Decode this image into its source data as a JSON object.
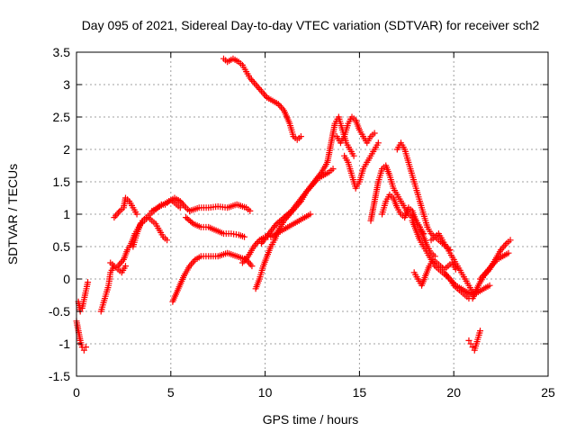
{
  "chart_data": {
    "type": "scatter",
    "title": "Day 095 of 2021, Sidereal Day-to-day VTEC variation (SDTVAR) for receiver sch2",
    "xlabel": "GPS time / hours",
    "ylabel": "SDTVAR / TECUs",
    "xlim": [
      0,
      25
    ],
    "ylim": [
      -1.5,
      3.5
    ],
    "xticks": [
      "0",
      "5",
      "10",
      "15",
      "20",
      "25"
    ],
    "yticks": [
      "-1.5",
      "-1",
      "-0.5",
      "0",
      "0.5",
      "1",
      "1.5",
      "2",
      "2.5",
      "3",
      "3.5"
    ],
    "grid": true,
    "marker": "+",
    "color": "#ff0000",
    "series": [
      {
        "x": [
          0.0,
          0.1,
          0.2,
          0.3,
          0.4,
          0.5
        ],
        "y": [
          -0.65,
          -0.8,
          -0.95,
          -1.05,
          -1.1,
          -1.05
        ]
      },
      {
        "x": [
          0.1,
          0.2,
          0.3,
          0.45,
          0.6
        ],
        "y": [
          -0.35,
          -0.5,
          -0.45,
          -0.25,
          -0.05
        ]
      },
      {
        "x": [
          1.3,
          1.5,
          1.7,
          1.8,
          2.0
        ],
        "y": [
          -0.5,
          -0.3,
          -0.1,
          0.1,
          0.2
        ]
      },
      {
        "x": [
          1.8,
          2.0,
          2.2,
          2.4,
          2.6
        ],
        "y": [
          0.25,
          0.2,
          0.15,
          0.1,
          0.2
        ]
      },
      {
        "x": [
          2.0,
          2.3,
          2.5,
          2.6,
          2.8,
          3.0,
          3.2
        ],
        "y": [
          0.95,
          1.05,
          1.1,
          1.25,
          1.2,
          1.1,
          1.0
        ]
      },
      {
        "x": [
          2.2,
          2.5,
          2.7,
          2.9,
          3.1,
          3.3,
          3.5,
          3.7,
          3.9,
          4.1,
          4.3,
          4.5,
          4.7,
          4.9,
          5.1,
          5.3,
          5.5
        ],
        "y": [
          0.2,
          0.3,
          0.45,
          0.55,
          0.7,
          0.8,
          0.9,
          0.95,
          1.0,
          1.05,
          1.1,
          1.15,
          1.15,
          1.2,
          1.2,
          1.15,
          1.1
        ]
      },
      {
        "x": [
          3.0,
          3.2,
          3.4,
          3.6,
          3.8,
          4.0,
          4.2,
          4.4,
          4.6,
          4.8
        ],
        "y": [
          0.5,
          0.7,
          0.85,
          0.9,
          0.95,
          0.9,
          0.85,
          0.75,
          0.65,
          0.6
        ]
      },
      {
        "x": [
          4.0,
          4.3,
          4.6,
          4.9,
          5.2,
          5.5,
          5.8,
          6.0
        ],
        "y": [
          1.05,
          1.1,
          1.15,
          1.2,
          1.25,
          1.2,
          1.1,
          1.05
        ]
      },
      {
        "x": [
          6.0,
          6.5,
          7.0,
          7.5,
          8.0,
          8.5,
          9.0,
          9.2
        ],
        "y": [
          1.05,
          1.1,
          1.1,
          1.12,
          1.1,
          1.15,
          1.1,
          1.05
        ]
      },
      {
        "x": [
          5.8,
          6.2,
          6.6,
          7.0,
          7.4,
          7.8,
          8.2,
          8.6,
          8.9
        ],
        "y": [
          0.95,
          0.85,
          0.8,
          0.8,
          0.75,
          0.7,
          0.7,
          0.68,
          0.65
        ]
      },
      {
        "x": [
          5.1,
          5.4,
          5.7,
          6.0,
          6.3,
          6.6,
          7.0,
          7.5,
          8.0,
          8.5,
          9.0,
          9.3
        ],
        "y": [
          -0.35,
          -0.15,
          0.05,
          0.2,
          0.3,
          0.35,
          0.35,
          0.35,
          0.4,
          0.35,
          0.3,
          0.2
        ]
      },
      {
        "x": [
          7.8,
          8.0,
          8.3,
          8.6,
          8.8,
          9.0,
          9.2,
          9.5,
          9.8,
          10.1,
          10.4,
          10.7,
          11.0,
          11.3,
          11.5,
          11.7,
          11.9
        ],
        "y": [
          3.4,
          3.35,
          3.4,
          3.35,
          3.3,
          3.2,
          3.1,
          3.0,
          2.9,
          2.8,
          2.75,
          2.7,
          2.6,
          2.4,
          2.2,
          2.15,
          2.2
        ]
      },
      {
        "x": [
          8.8,
          9.1,
          9.4,
          9.7,
          10.0,
          10.3,
          10.6,
          10.9,
          11.2,
          11.5,
          11.8,
          12.1,
          12.4
        ],
        "y": [
          0.25,
          0.35,
          0.5,
          0.6,
          0.65,
          0.65,
          0.7,
          0.75,
          0.8,
          0.85,
          0.9,
          0.95,
          1.0
        ]
      },
      {
        "x": [
          9.5,
          9.7,
          9.9,
          10.1,
          10.3,
          10.5,
          10.7,
          11.0,
          11.3,
          11.6,
          11.9,
          12.2,
          12.5,
          12.8,
          13.1,
          13.4,
          13.6
        ],
        "y": [
          -0.15,
          0.0,
          0.2,
          0.35,
          0.5,
          0.6,
          0.75,
          0.9,
          1.0,
          1.1,
          1.2,
          1.35,
          1.45,
          1.55,
          1.6,
          1.65,
          1.7
        ]
      },
      {
        "x": [
          9.8,
          10.2,
          10.6,
          11.0,
          11.4,
          11.8,
          12.2,
          12.6,
          13.0,
          13.3,
          13.5,
          13.7,
          13.9,
          14.1,
          14.3,
          14.5,
          14.7
        ],
        "y": [
          0.55,
          0.7,
          0.85,
          0.95,
          1.05,
          1.2,
          1.35,
          1.5,
          1.65,
          1.8,
          2.1,
          2.4,
          2.5,
          2.3,
          2.1,
          2.0,
          1.9
        ]
      },
      {
        "x": [
          13.8,
          14.0,
          14.2,
          14.4,
          14.6,
          14.8,
          15.0,
          15.2,
          15.4,
          15.6,
          15.8
        ],
        "y": [
          2.2,
          2.1,
          2.2,
          2.4,
          2.5,
          2.45,
          2.3,
          2.2,
          2.1,
          2.2,
          2.25
        ]
      },
      {
        "x": [
          14.2,
          14.4,
          14.6,
          14.8,
          15.0,
          15.2,
          15.4,
          15.6,
          15.8,
          16.0
        ],
        "y": [
          1.9,
          1.8,
          1.6,
          1.4,
          1.5,
          1.7,
          1.8,
          1.9,
          2.0,
          2.1
        ]
      },
      {
        "x": [
          15.6,
          15.8,
          16.0,
          16.2,
          16.4,
          16.6,
          16.8,
          17.0,
          17.2,
          17.4,
          17.6,
          17.8,
          18.0,
          18.2,
          18.4
        ],
        "y": [
          0.9,
          1.2,
          1.5,
          1.7,
          1.75,
          1.6,
          1.4,
          1.3,
          1.2,
          1.1,
          1.0,
          0.95,
          0.9,
          0.8,
          0.7
        ]
      },
      {
        "x": [
          16.2,
          16.4,
          16.6,
          16.8,
          17.0,
          17.2,
          17.4,
          17.6,
          17.8,
          18.0,
          18.2,
          18.4,
          18.6,
          18.8,
          19.0
        ],
        "y": [
          1.0,
          1.2,
          1.3,
          1.25,
          1.1,
          1.0,
          0.95,
          1.1,
          1.05,
          0.9,
          0.8,
          0.65,
          0.5,
          0.4,
          0.35
        ]
      },
      {
        "x": [
          17.0,
          17.2,
          17.4,
          17.6,
          17.8,
          18.0,
          18.2,
          18.4,
          18.6,
          18.8,
          19.0,
          19.2,
          19.4,
          19.6,
          19.8
        ],
        "y": [
          2.0,
          2.1,
          2.0,
          1.8,
          1.6,
          1.4,
          1.2,
          1.0,
          0.8,
          0.7,
          0.65,
          0.6,
          0.55,
          0.5,
          0.45
        ]
      },
      {
        "x": [
          17.8,
          18.0,
          18.2,
          18.4,
          18.6,
          18.8,
          19.0,
          19.2,
          19.4,
          19.6,
          19.8,
          20.0,
          20.2,
          20.4,
          20.6,
          20.8
        ],
        "y": [
          0.9,
          0.75,
          0.6,
          0.5,
          0.4,
          0.3,
          0.2,
          0.15,
          0.1,
          0.05,
          0.0,
          -0.1,
          -0.15,
          -0.2,
          -0.25,
          -0.3
        ]
      },
      {
        "x": [
          17.9,
          18.1,
          18.3,
          18.5,
          18.7,
          18.9,
          19.1,
          19.3,
          19.5,
          19.7,
          19.9,
          20.1
        ],
        "y": [
          0.1,
          0.0,
          -0.1,
          0.05,
          0.2,
          0.3,
          0.25,
          0.2,
          0.15,
          0.2,
          0.25,
          0.15
        ]
      },
      {
        "x": [
          18.8,
          19.0,
          19.2,
          19.4,
          19.6,
          19.8,
          20.0,
          20.2,
          20.4,
          20.6,
          20.8,
          21.0
        ],
        "y": [
          0.6,
          0.65,
          0.7,
          0.6,
          0.5,
          0.4,
          0.3,
          0.2,
          0.1,
          0.0,
          -0.1,
          -0.2
        ]
      },
      {
        "x": [
          19.5,
          19.8,
          20.1,
          20.4,
          20.7,
          21.0,
          21.3,
          21.6,
          21.9
        ],
        "y": [
          0.1,
          0.0,
          -0.1,
          -0.15,
          -0.2,
          -0.25,
          -0.2,
          -0.15,
          -0.1
        ]
      },
      {
        "x": [
          20.8,
          20.9,
          21.0,
          21.1,
          21.2,
          21.3,
          21.4
        ],
        "y": [
          -0.95,
          -1.0,
          -1.05,
          -1.1,
          -1.0,
          -0.9,
          -0.8
        ]
      },
      {
        "x": [
          21.0,
          21.3,
          21.6,
          21.9,
          22.2,
          22.5,
          22.8,
          23.0
        ],
        "y": [
          -0.3,
          -0.1,
          0.05,
          0.15,
          0.3,
          0.45,
          0.55,
          0.6
        ]
      },
      {
        "x": [
          21.4,
          21.7,
          22.0,
          22.3,
          22.6,
          22.9
        ],
        "y": [
          0.0,
          0.1,
          0.2,
          0.3,
          0.35,
          0.4
        ]
      }
    ]
  }
}
